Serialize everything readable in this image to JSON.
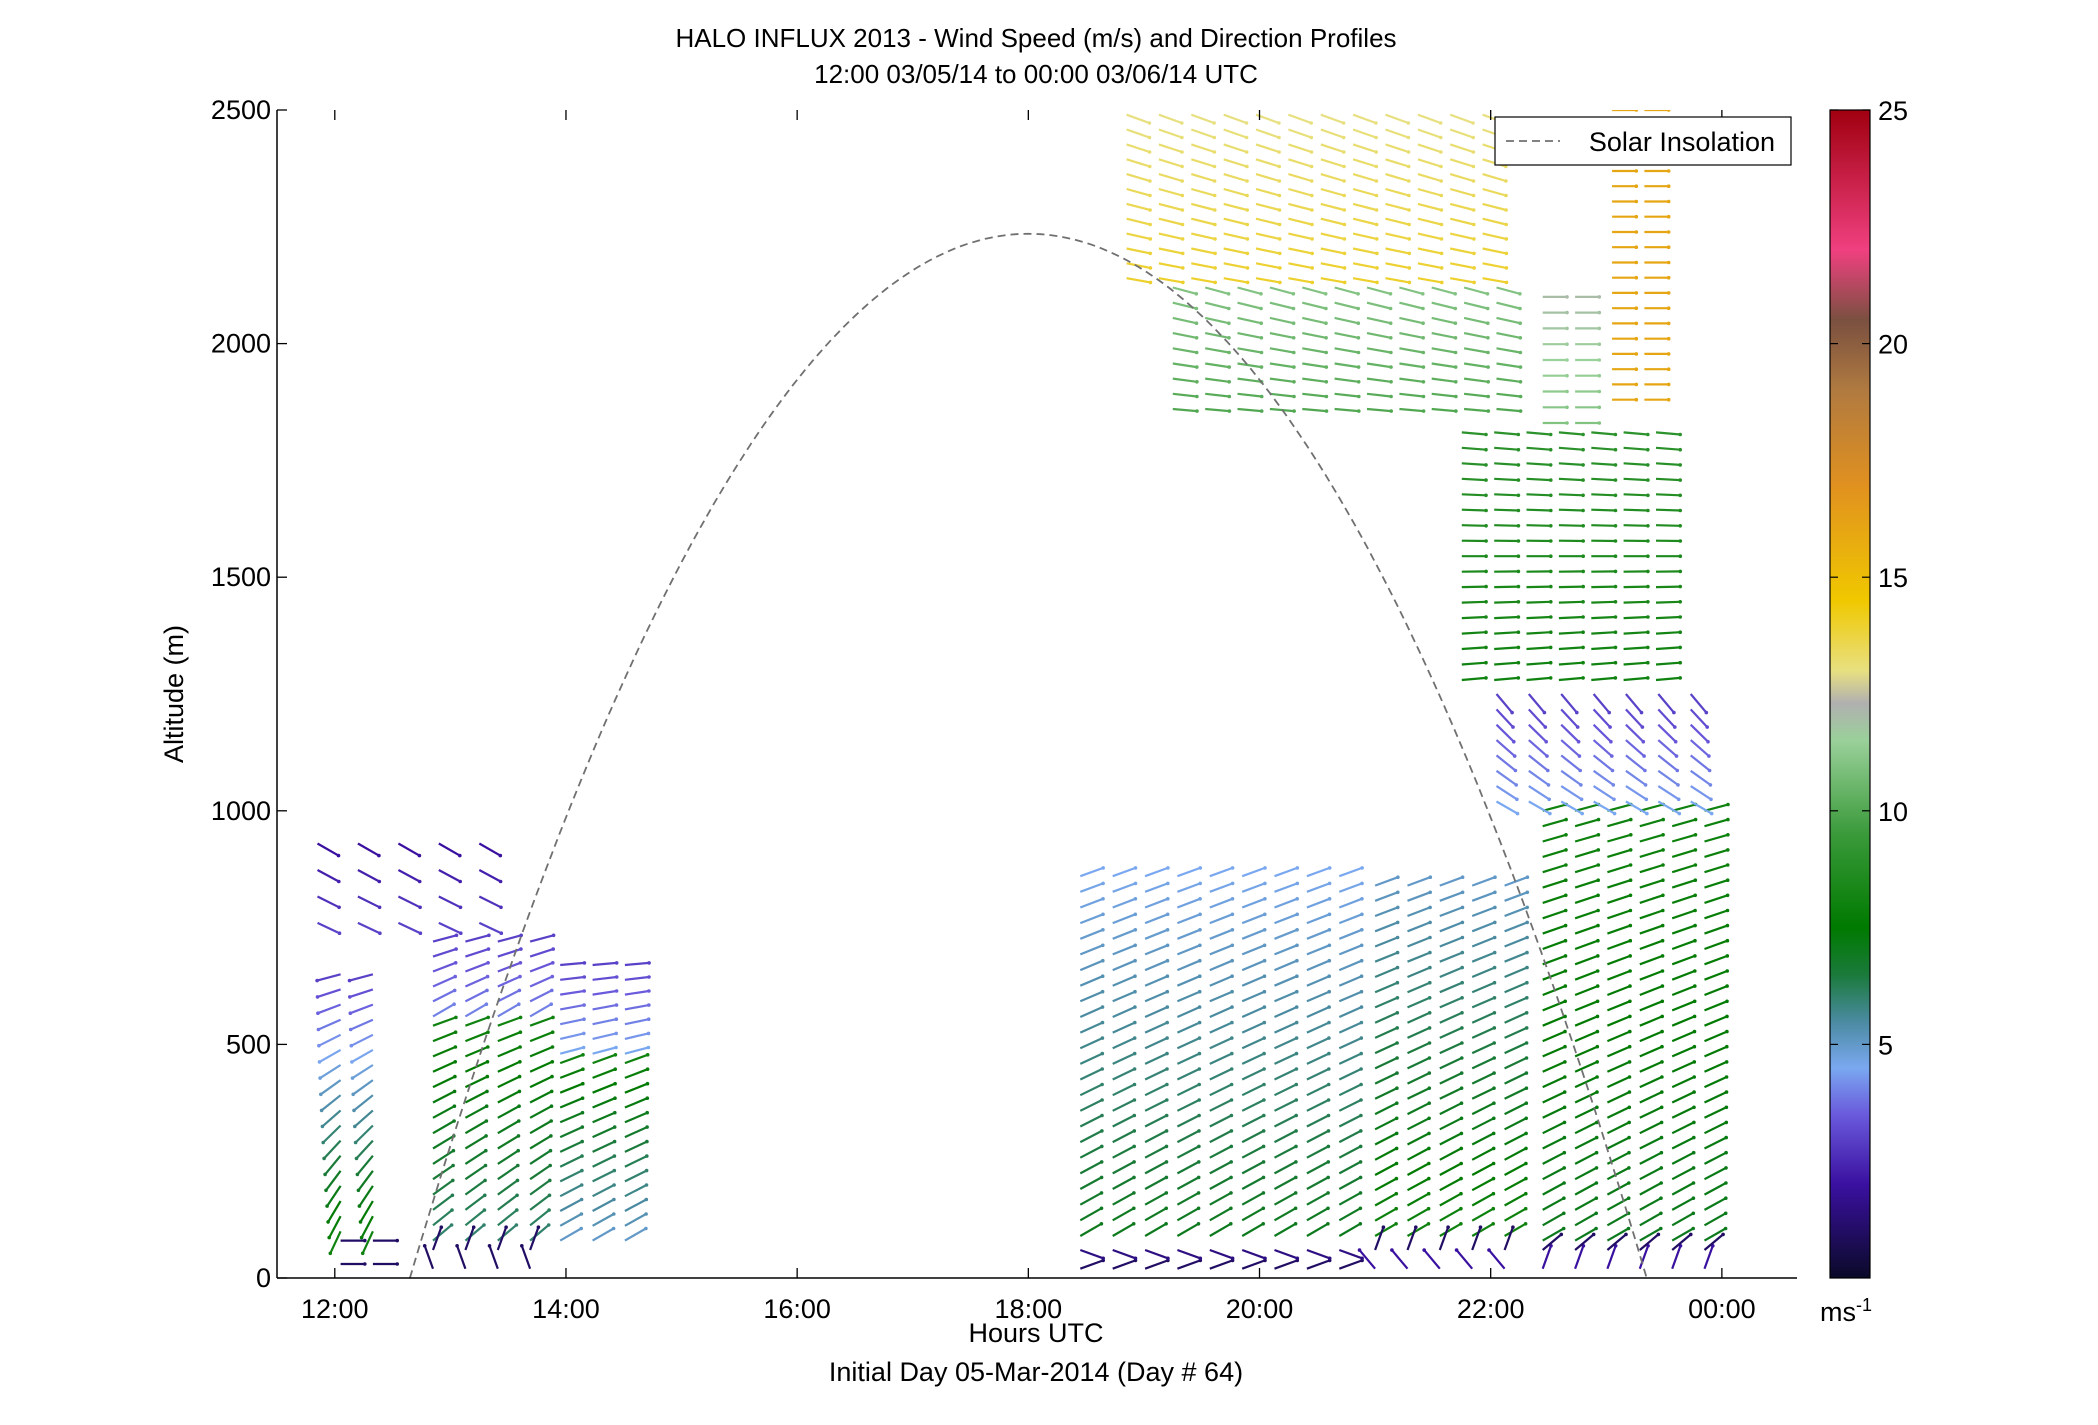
{
  "chart_data": {
    "type": "quiver",
    "title": "HALO INFLUX 2013 - Wind Speed (m/s) and Direction Profiles",
    "subtitle": "12:00 03/05/14 to 00:00 03/06/14  UTC",
    "xlabel": "Hours UTC",
    "xlabel2": "Initial Day 05-Mar-2014 (Day # 64)",
    "ylabel": "Altitude (m)",
    "xlim": [
      11.5,
      24.65
    ],
    "ylim": [
      0,
      2500
    ],
    "xticks": [
      12,
      14,
      16,
      18,
      20,
      22,
      24
    ],
    "xtick_labels": [
      "12:00",
      "14:00",
      "16:00",
      "18:00",
      "20:00",
      "22:00",
      "00:00"
    ],
    "yticks": [
      0,
      500,
      1000,
      1500,
      2000,
      2500
    ],
    "ytick_labels": [
      "0",
      "500",
      "1000",
      "1500",
      "2000",
      "2500"
    ],
    "legend": {
      "label": "Solar Insolation",
      "position": "top-right",
      "line": "dashed",
      "color": "#707070"
    },
    "colorbar": {
      "range": [
        0,
        25
      ],
      "ticks": [
        5,
        10,
        15,
        20,
        25
      ],
      "tick_labels": [
        "5",
        "10",
        "15",
        "20",
        "25"
      ],
      "unit": "ms",
      "unit_sup": "-1",
      "stops": [
        {
          "v": 0,
          "c": "#0a0a28"
        },
        {
          "v": 2,
          "c": "#3a10a0"
        },
        {
          "v": 3.5,
          "c": "#6a5adc"
        },
        {
          "v": 4.5,
          "c": "#7aa8f0"
        },
        {
          "v": 5.5,
          "c": "#4a8aa0"
        },
        {
          "v": 6.5,
          "c": "#1a7a3a"
        },
        {
          "v": 7.5,
          "c": "#007a00"
        },
        {
          "v": 9.5,
          "c": "#3a9a3a"
        },
        {
          "v": 11.5,
          "c": "#9ad09a"
        },
        {
          "v": 12.3,
          "c": "#b0b0b0"
        },
        {
          "v": 13,
          "c": "#e8e080"
        },
        {
          "v": 14.5,
          "c": "#f0c800"
        },
        {
          "v": 17,
          "c": "#e09020"
        },
        {
          "v": 19,
          "c": "#b07a40"
        },
        {
          "v": 20.5,
          "c": "#7a5040"
        },
        {
          "v": 22,
          "c": "#f04080"
        },
        {
          "v": 25,
          "c": "#a00010"
        }
      ]
    },
    "solar_curve": {
      "start_hour": 12.65,
      "peak_hour": 18.0,
      "end_hour": 23.35,
      "peak_altitude": 2235
    },
    "arrow_length_hours": 0.21,
    "wind_groups": [
      {
        "x_start": 12.05,
        "x_end": 12.5,
        "dx": 0.28,
        "y_start": 100,
        "y_end": 650,
        "dy": 33,
        "speed": [
          8,
          3
        ],
        "direction": [
          25,
          75
        ]
      },
      {
        "x_start": 12.05,
        "x_end": 12.5,
        "dx": 0.28,
        "y_start": 30,
        "y_end": 80,
        "dy": 40,
        "speed": [
          1,
          1
        ],
        "direction": [
          270,
          270
        ]
      },
      {
        "x_start": 12.85,
        "x_end": 13.75,
        "dx": 0.28,
        "y_start": 80,
        "y_end": 540,
        "dy": 33,
        "speed": [
          6,
          8
        ],
        "direction": [
          230,
          250
        ]
      },
      {
        "x_start": 12.85,
        "x_end": 13.75,
        "dx": 0.28,
        "y_start": 560,
        "y_end": 720,
        "dy": 33,
        "speed": [
          4,
          3
        ],
        "direction": [
          240,
          255
        ]
      },
      {
        "x_start": 12.85,
        "x_end": 13.75,
        "dx": 0.28,
        "y_start": 20,
        "y_end": 60,
        "dy": 30,
        "speed": [
          1,
          1
        ],
        "direction": [
          160,
          200
        ]
      },
      {
        "x_start": 13.95,
        "x_end": 14.7,
        "dx": 0.28,
        "y_start": 80,
        "y_end": 460,
        "dy": 33,
        "speed": [
          5,
          8
        ],
        "direction": [
          240,
          250
        ]
      },
      {
        "x_start": 13.95,
        "x_end": 14.7,
        "dx": 0.28,
        "y_start": 480,
        "y_end": 670,
        "dy": 33,
        "speed": [
          4.5,
          3
        ],
        "direction": [
          255,
          265
        ]
      },
      {
        "x_start": 11.85,
        "x_end": 13.5,
        "dx": 0.35,
        "y_start": 760,
        "y_end": 930,
        "dy": 60,
        "speed": [
          3,
          2
        ],
        "direction": [
          295,
          300
        ]
      },
      {
        "x_start": 18.45,
        "x_end": 20.8,
        "dx": 0.28,
        "y_start": 90,
        "y_end": 860,
        "dy": 33,
        "speed": [
          7,
          4.5
        ],
        "direction": [
          240,
          250
        ]
      },
      {
        "x_start": 18.45,
        "x_end": 20.8,
        "dx": 0.28,
        "y_start": 20,
        "y_end": 60,
        "dy": 30,
        "speed": [
          1,
          1.5
        ],
        "direction": [
          250,
          290
        ]
      },
      {
        "x_start": 21.0,
        "x_end": 22.2,
        "dx": 0.28,
        "y_start": 90,
        "y_end": 840,
        "dy": 33,
        "speed": [
          8,
          5
        ],
        "direction": [
          240,
          250
        ]
      },
      {
        "x_start": 21.0,
        "x_end": 22.2,
        "dx": 0.28,
        "y_start": 20,
        "y_end": 60,
        "dy": 30,
        "speed": [
          2,
          1
        ],
        "direction": [
          140,
          200
        ]
      },
      {
        "x_start": 22.45,
        "x_end": 24.1,
        "dx": 0.28,
        "y_start": 80,
        "y_end": 1000,
        "dy": 33,
        "speed": [
          7,
          8
        ],
        "direction": [
          240,
          255
        ]
      },
      {
        "x_start": 22.45,
        "x_end": 24.1,
        "dx": 0.28,
        "y_start": 20,
        "y_end": 60,
        "dy": 30,
        "speed": [
          2,
          1
        ],
        "direction": [
          200,
          230
        ]
      },
      {
        "x_start": 22.05,
        "x_end": 23.9,
        "dx": 0.28,
        "y_start": 1020,
        "y_end": 1250,
        "dy": 33,
        "speed": [
          4.5,
          3
        ],
        "direction": [
          300,
          320
        ]
      },
      {
        "x_start": 21.75,
        "x_end": 23.7,
        "dx": 0.28,
        "y_start": 1280,
        "y_end": 1810,
        "dy": 33,
        "speed": [
          8,
          9
        ],
        "direction": [
          265,
          275
        ]
      },
      {
        "x_start": 19.25,
        "x_end": 22.05,
        "dx": 0.28,
        "y_start": 1860,
        "y_end": 2120,
        "dy": 33,
        "speed": [
          10,
          11
        ],
        "direction": [
          275,
          285
        ]
      },
      {
        "x_start": 18.85,
        "x_end": 22.05,
        "dx": 0.28,
        "y_start": 2140,
        "y_end": 2490,
        "dy": 33,
        "speed": [
          14,
          13
        ],
        "direction": [
          280,
          290
        ]
      },
      {
        "x_start": 22.45,
        "x_end": 23.0,
        "dx": 0.28,
        "y_start": 1830,
        "y_end": 2100,
        "dy": 33,
        "speed": [
          11,
          12
        ],
        "direction": [
          270,
          270
        ]
      },
      {
        "x_start": 23.05,
        "x_end": 23.35,
        "dx": 0.28,
        "y_start": 1880,
        "y_end": 2500,
        "dy": 33,
        "speed": [
          16,
          16
        ],
        "direction": [
          270,
          270
        ]
      }
    ]
  }
}
